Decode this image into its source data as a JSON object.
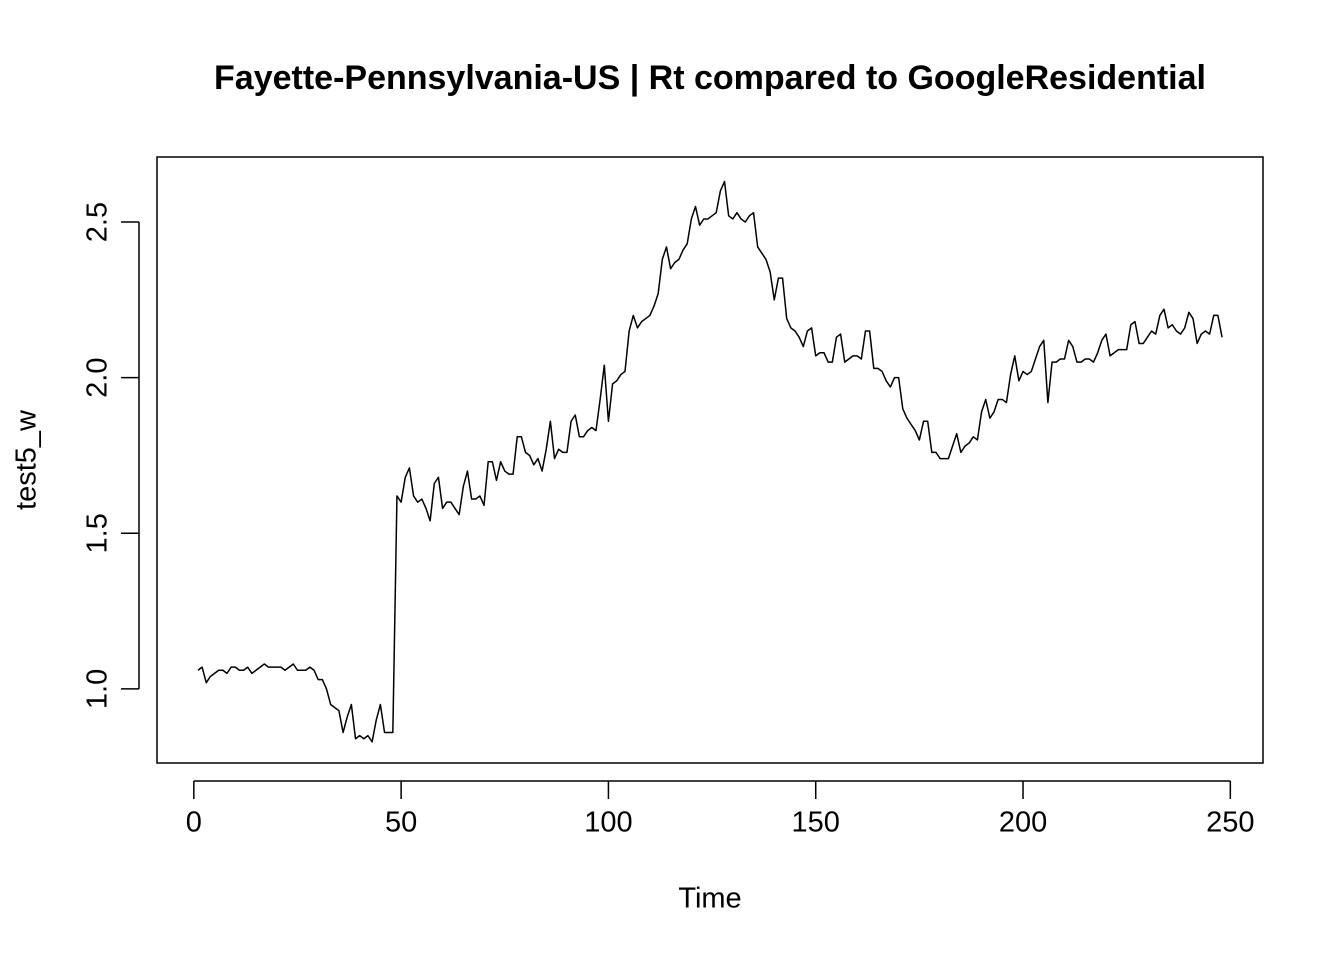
{
  "chart_data": {
    "type": "line",
    "title": "Fayette-Pennsylvania-US | Rt compared to GoogleResidential",
    "x_label": "Time",
    "y_label": "test5_w",
    "color": "#000000",
    "xlim": [
      -8.88,
      257.88
    ],
    "ylim": [
      0.762,
      2.709
    ],
    "xticks": [
      0,
      50,
      100,
      150,
      200,
      250
    ],
    "yticks": [
      {
        "value": 1,
        "label": "1.0"
      },
      1.5,
      {
        "value": 2,
        "label": "2.0"
      },
      2.5
    ],
    "x": [
      1,
      2,
      3,
      4,
      5,
      6,
      7,
      8,
      9,
      10,
      11,
      12,
      13,
      14,
      15,
      16,
      17,
      18,
      19,
      20,
      21,
      22,
      23,
      24,
      25,
      26,
      27,
      28,
      29,
      30,
      31,
      32,
      33,
      34,
      35,
      36,
      37,
      38,
      39,
      40,
      41,
      42,
      43,
      44,
      45,
      46,
      47,
      48,
      49,
      50,
      51,
      52,
      53,
      54,
      55,
      56,
      57,
      58,
      59,
      60,
      61,
      62,
      63,
      64,
      65,
      66,
      67,
      68,
      69,
      70,
      71,
      72,
      73,
      74,
      75,
      76,
      77,
      78,
      79,
      80,
      81,
      82,
      83,
      84,
      85,
      86,
      87,
      88,
      89,
      90,
      91,
      92,
      93,
      94,
      95,
      96,
      97,
      98,
      99,
      100,
      101,
      102,
      103,
      104,
      105,
      106,
      107,
      108,
      109,
      110,
      111,
      112,
      113,
      114,
      115,
      116,
      117,
      118,
      119,
      120,
      121,
      122,
      123,
      124,
      125,
      126,
      127,
      128,
      129,
      130,
      131,
      132,
      133,
      134,
      135,
      136,
      137,
      138,
      139,
      140,
      141,
      142,
      143,
      144,
      145,
      146,
      147,
      148,
      149,
      150,
      151,
      152,
      153,
      154,
      155,
      156,
      157,
      158,
      159,
      160,
      161,
      162,
      163,
      164,
      165,
      166,
      167,
      168,
      169,
      170,
      171,
      172,
      173,
      174,
      175,
      176,
      177,
      178,
      179,
      180,
      181,
      182,
      183,
      184,
      185,
      186,
      187,
      188,
      189,
      190,
      191,
      192,
      193,
      194,
      195,
      196,
      197,
      198,
      199,
      200,
      201,
      202,
      203,
      204,
      205,
      206,
      207,
      208,
      209,
      210,
      211,
      212,
      213,
      214,
      215,
      216,
      217,
      218,
      219,
      220,
      221,
      222,
      223,
      224,
      225,
      226,
      227,
      228,
      229,
      230,
      231,
      232,
      233,
      234,
      235,
      236,
      237,
      238,
      239,
      240,
      241,
      242,
      243,
      244,
      245,
      246,
      247,
      248
    ],
    "values": [
      1.06,
      1.07,
      1.02,
      1.04,
      1.05,
      1.06,
      1.06,
      1.05,
      1.07,
      1.07,
      1.06,
      1.06,
      1.07,
      1.05,
      1.06,
      1.07,
      1.08,
      1.07,
      1.07,
      1.07,
      1.07,
      1.06,
      1.07,
      1.08,
      1.06,
      1.06,
      1.06,
      1.07,
      1.06,
      1.03,
      1.03,
      1.0,
      0.95,
      0.94,
      0.93,
      0.86,
      0.91,
      0.95,
      0.84,
      0.85,
      0.84,
      0.85,
      0.83,
      0.9,
      0.95,
      0.86,
      0.86,
      0.86,
      1.62,
      1.6,
      1.68,
      1.71,
      1.62,
      1.6,
      1.61,
      1.58,
      1.54,
      1.66,
      1.68,
      1.58,
      1.6,
      1.6,
      1.58,
      1.56,
      1.65,
      1.7,
      1.61,
      1.61,
      1.62,
      1.59,
      1.73,
      1.73,
      1.67,
      1.73,
      1.7,
      1.69,
      1.69,
      1.81,
      1.81,
      1.76,
      1.75,
      1.72,
      1.74,
      1.7,
      1.77,
      1.86,
      1.74,
      1.77,
      1.76,
      1.76,
      1.86,
      1.88,
      1.81,
      1.81,
      1.83,
      1.84,
      1.83,
      1.93,
      2.04,
      1.86,
      1.98,
      1.99,
      2.01,
      2.02,
      2.15,
      2.2,
      2.16,
      2.18,
      2.19,
      2.2,
      2.23,
      2.27,
      2.38,
      2.42,
      2.35,
      2.37,
      2.38,
      2.41,
      2.43,
      2.51,
      2.55,
      2.49,
      2.51,
      2.51,
      2.52,
      2.53,
      2.6,
      2.63,
      2.52,
      2.51,
      2.53,
      2.51,
      2.5,
      2.52,
      2.53,
      2.42,
      2.4,
      2.38,
      2.34,
      2.25,
      2.32,
      2.32,
      2.19,
      2.16,
      2.15,
      2.13,
      2.1,
      2.15,
      2.16,
      2.07,
      2.08,
      2.08,
      2.05,
      2.05,
      2.13,
      2.14,
      2.05,
      2.06,
      2.07,
      2.07,
      2.06,
      2.15,
      2.15,
      2.03,
      2.03,
      2.02,
      1.99,
      1.97,
      2.0,
      2.0,
      1.9,
      1.87,
      1.85,
      1.83,
      1.8,
      1.86,
      1.86,
      1.76,
      1.76,
      1.74,
      1.74,
      1.74,
      1.78,
      1.82,
      1.76,
      1.78,
      1.79,
      1.81,
      1.8,
      1.89,
      1.93,
      1.87,
      1.89,
      1.93,
      1.93,
      1.92,
      2.01,
      2.07,
      1.99,
      2.02,
      2.01,
      2.02,
      2.06,
      2.1,
      2.12,
      1.92,
      2.05,
      2.05,
      2.06,
      2.06,
      2.12,
      2.1,
      2.05,
      2.05,
      2.06,
      2.06,
      2.05,
      2.08,
      2.12,
      2.14,
      2.07,
      2.08,
      2.09,
      2.09,
      2.09,
      2.17,
      2.18,
      2.11,
      2.11,
      2.13,
      2.15,
      2.14,
      2.2,
      2.22,
      2.16,
      2.17,
      2.15,
      2.14,
      2.16,
      2.21,
      2.19,
      2.11,
      2.14,
      2.15,
      2.14,
      2.2,
      2.2,
      2.13
    ]
  }
}
